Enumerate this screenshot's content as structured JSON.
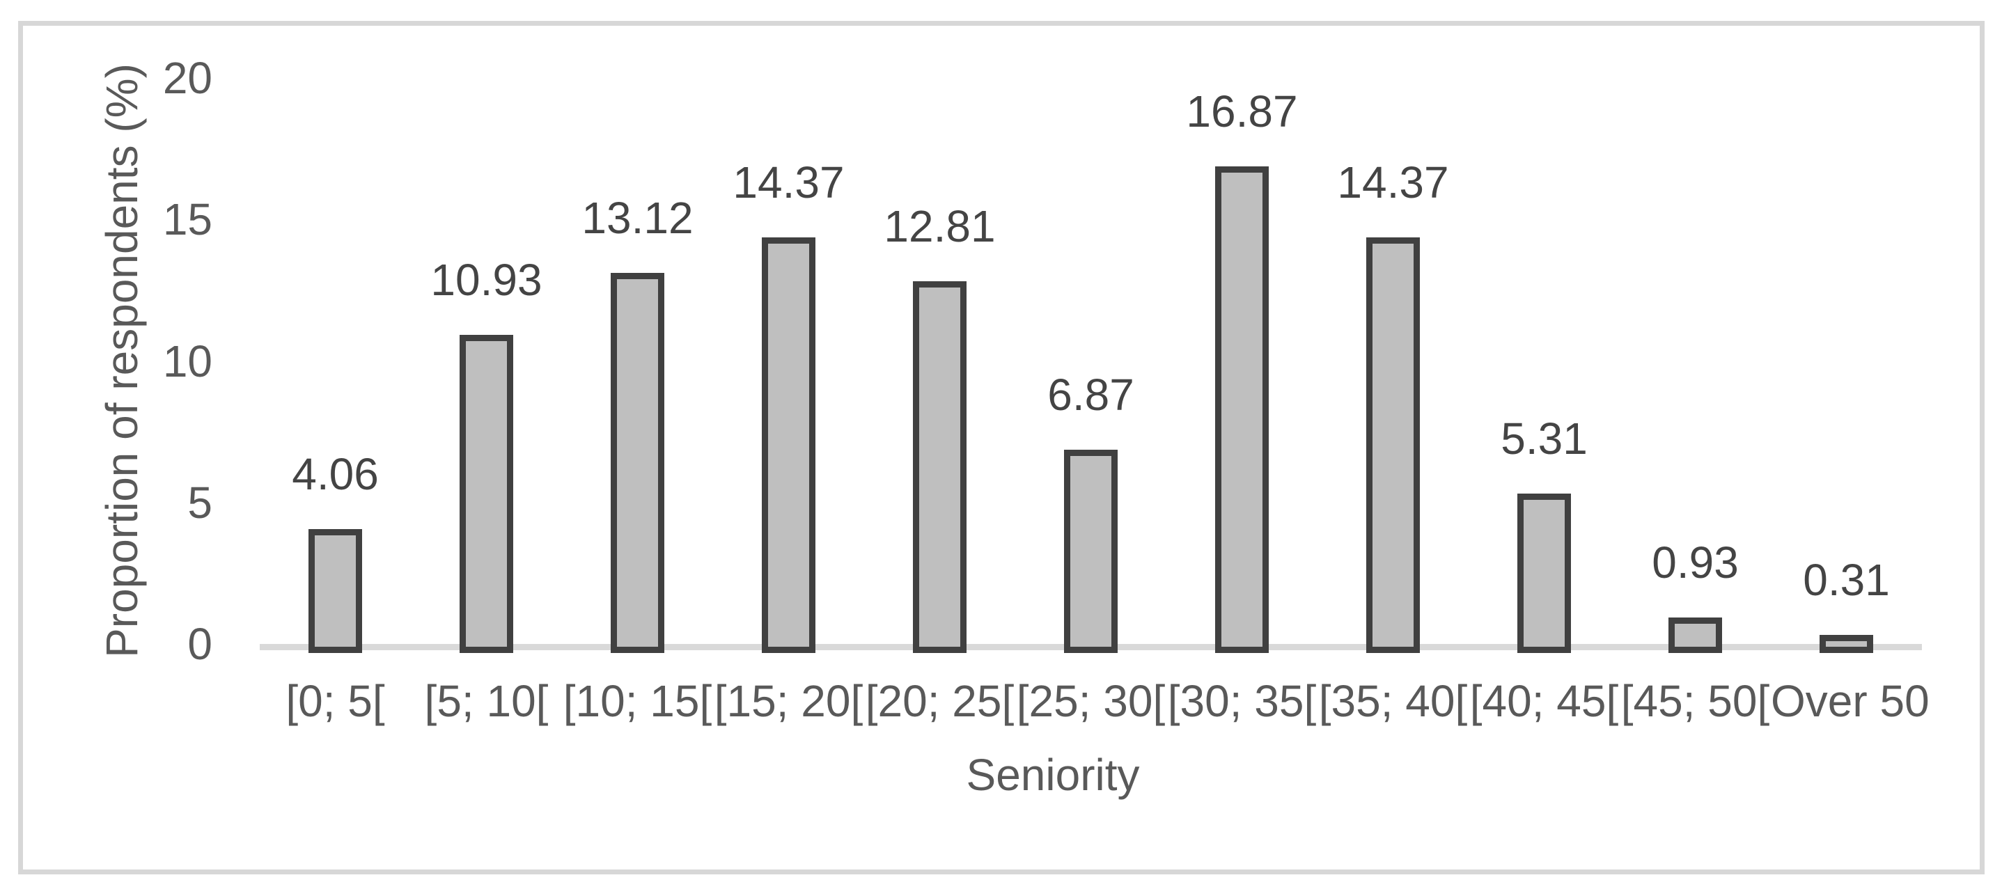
{
  "chart_data": {
    "type": "bar",
    "title": "",
    "categories": [
      "[0; 5[",
      "[5; 10[",
      "[10; 15[",
      "[15; 20[",
      "[20; 25[",
      "[25; 30[",
      "[30; 35[",
      "[35; 40[",
      "[40; 45[",
      "[45; 50[",
      "Over 50"
    ],
    "values": [
      4.06,
      10.93,
      13.12,
      14.37,
      12.81,
      6.87,
      16.87,
      14.37,
      5.31,
      0.93,
      0.31
    ],
    "data_labels": [
      "4.06",
      "10.93",
      "13.12",
      "14.37",
      "12.81",
      "6.87",
      "16.87",
      "14.37",
      "5.31",
      "0.93",
      "0.31"
    ],
    "xlabel": "Seniority",
    "ylabel": "Proportion of respondents (%)",
    "yticks": [
      "0",
      "5",
      "10",
      "15",
      "20"
    ],
    "ytick_values": [
      0,
      5,
      10,
      15,
      20
    ],
    "ylim": [
      0,
      20
    ],
    "grid": false,
    "legend": false,
    "colors": {
      "bar_fill": "#bfbfbf",
      "bar_border": "#404040",
      "axis_line": "#d9d9d9",
      "frame_border": "#d7d7d7",
      "text": "#595959",
      "data_label": "#444444",
      "background": "#ffffff"
    }
  }
}
